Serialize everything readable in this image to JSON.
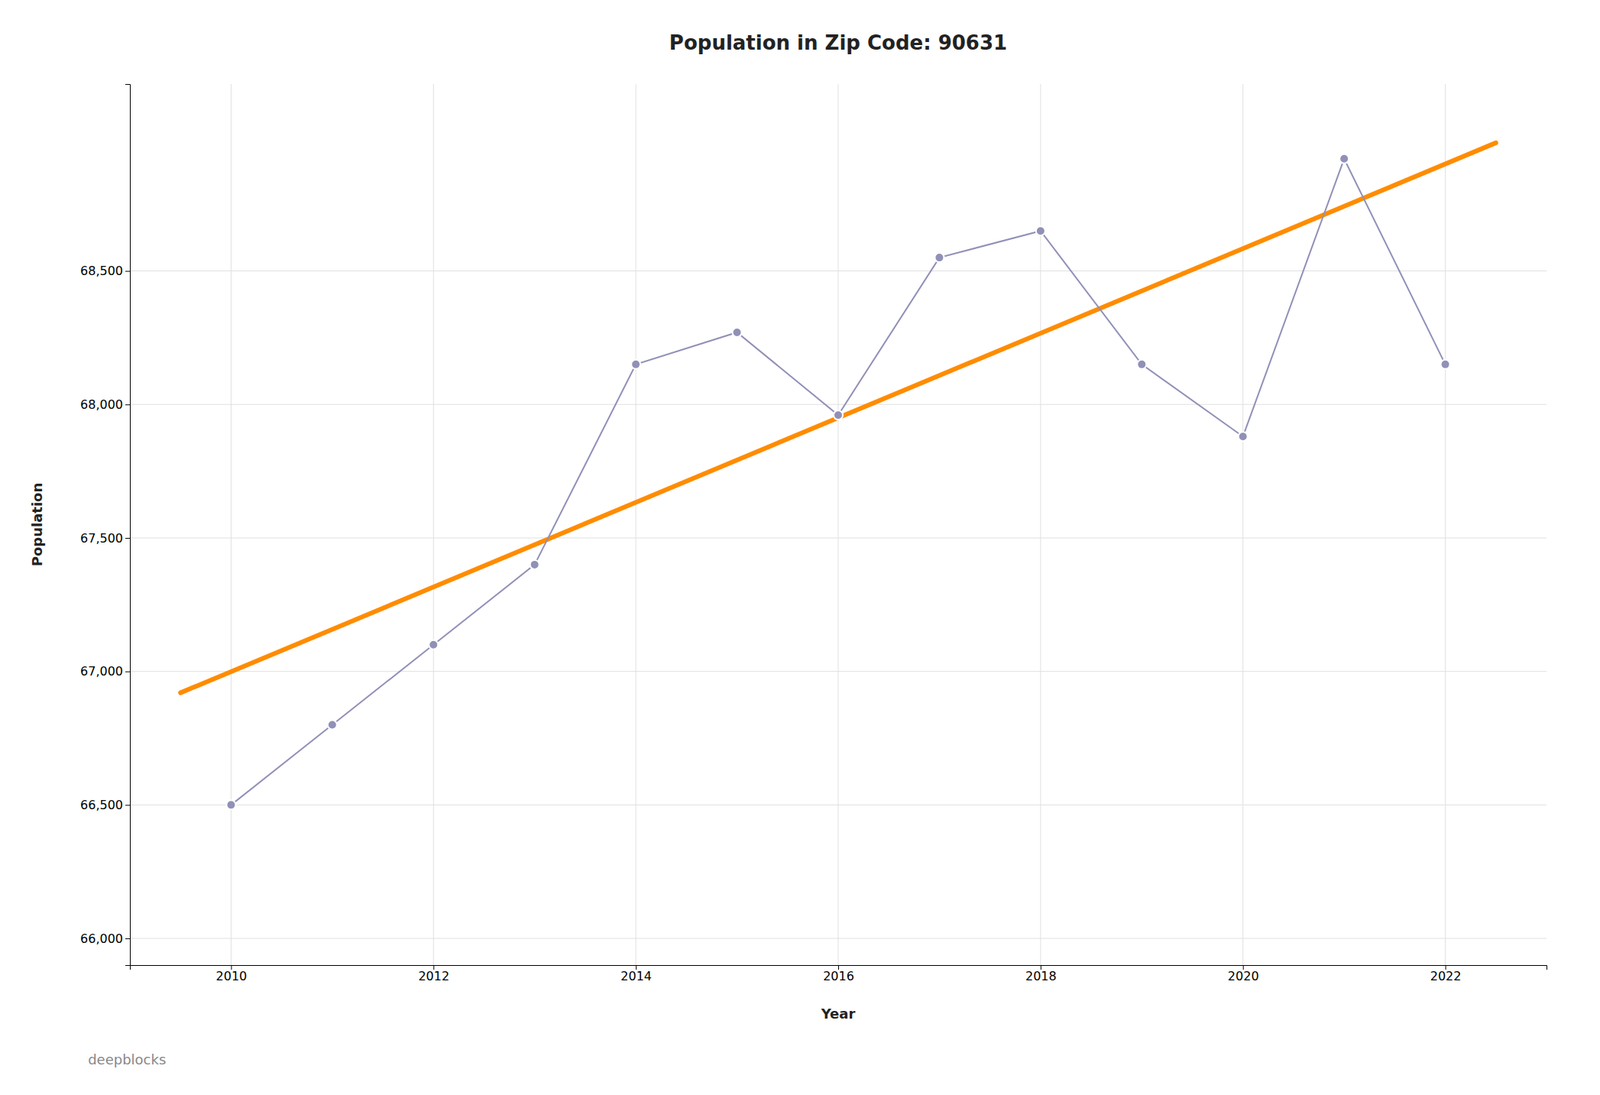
{
  "chart_data": {
    "type": "line",
    "title": "Population in Zip Code: 90631",
    "x_label": "Year",
    "y_label": "Population",
    "x": [
      2010,
      2011,
      2012,
      2013,
      2014,
      2015,
      2016,
      2017,
      2018,
      2019,
      2020,
      2021,
      2022
    ],
    "series": [
      {
        "values": [
          66500,
          66800,
          67100,
          67400,
          68150,
          68270,
          67960,
          68550,
          68650,
          68150,
          67880,
          68920,
          68150
        ],
        "color": "#9090b8",
        "marker": "circle"
      },
      {
        "x": [
          2009.5,
          2022.5
        ],
        "values": [
          66920,
          68980
        ],
        "color": "#ff8c00"
      }
    ],
    "xlim": [
      2009.0,
      2023.0
    ],
    "xticks": [
      2010,
      2012,
      2014,
      2016,
      2018,
      2020,
      2022
    ],
    "ylim": [
      65900,
      69200
    ],
    "yticks": [
      {
        "value": 66000,
        "label": "66,000"
      },
      {
        "value": 66500,
        "label": "66,500"
      },
      {
        "value": 67000,
        "label": "67,000"
      },
      {
        "value": 67500,
        "label": "67,500"
      },
      {
        "value": 68000,
        "label": "68,000"
      },
      {
        "value": 68500,
        "label": "68,500"
      }
    ],
    "grid": true,
    "annotations": [
      "deepblocks"
    ]
  }
}
